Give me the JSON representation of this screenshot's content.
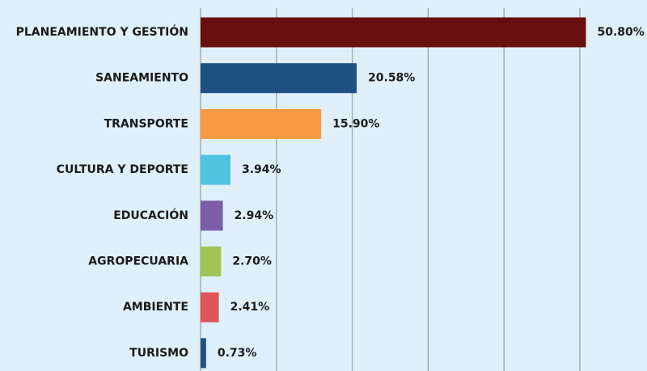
{
  "chart_data": {
    "type": "barh",
    "categories": [
      "PLANEAMIENTO Y GESTIÓN",
      "SANEAMIENTO",
      "TRANSPORTE",
      "CULTURA Y DEPORTE",
      "EDUCACIÓN",
      "AGROPECUARIA",
      "AMBIENTE",
      "TURISMO"
    ],
    "values": [
      50.8,
      20.58,
      15.9,
      3.94,
      2.94,
      2.7,
      2.41,
      0.73
    ],
    "value_labels": [
      "50.80%",
      "20.58%",
      "15.90%",
      "3.94%",
      "2.94%",
      "2.70%",
      "2.41%",
      "0.73%"
    ],
    "colors": [
      "#6a0f0f",
      "#1f5082",
      "#f89a40",
      "#4fc3e0",
      "#7b5ea7",
      "#a3c455",
      "#e05555",
      "#1f5082"
    ],
    "xlim": [
      0,
      58
    ],
    "xticks": [
      0,
      10,
      20,
      30,
      40,
      50
    ],
    "grid": true
  }
}
